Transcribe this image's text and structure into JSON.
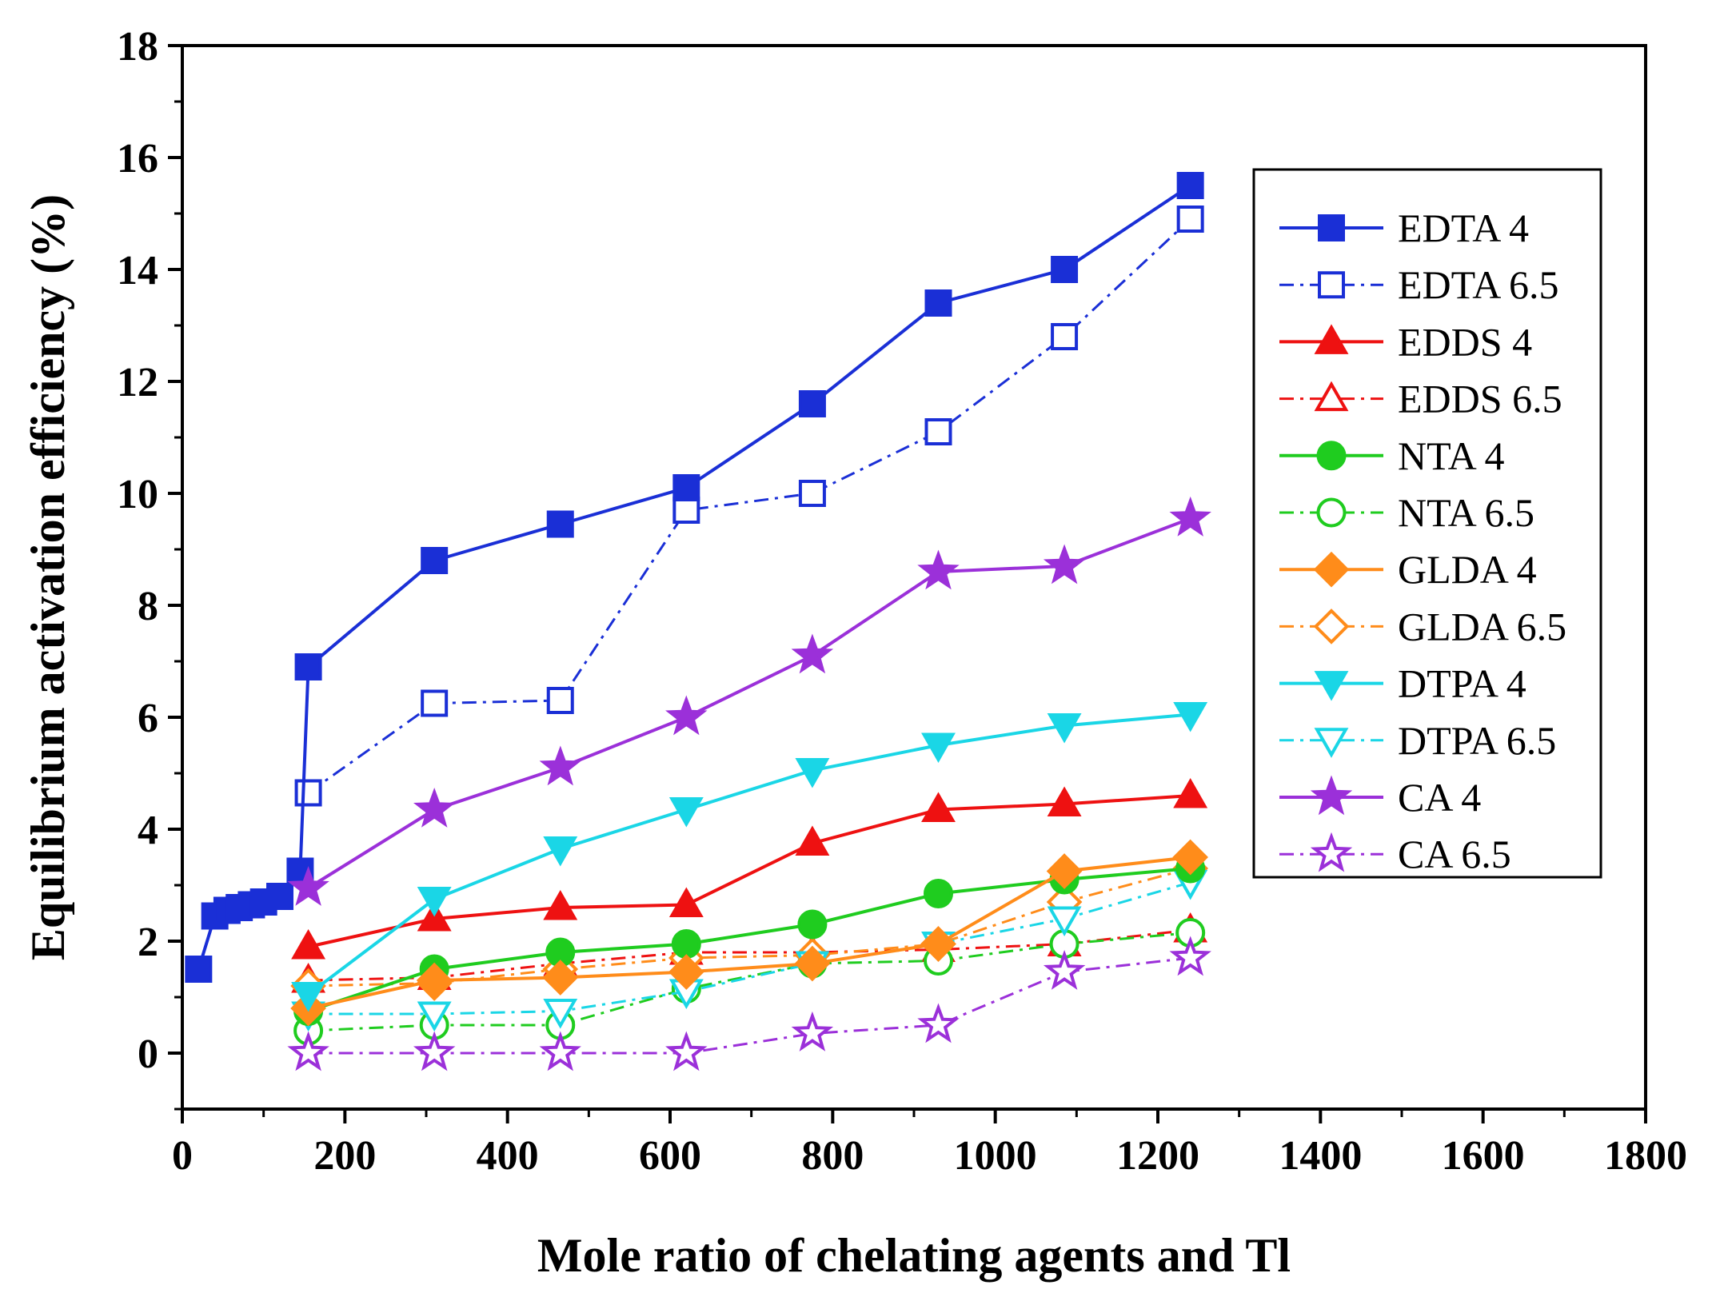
{
  "chart_data": {
    "type": "line",
    "title": "",
    "xlabel": "Mole ratio of chelating agents and Tl",
    "ylabel": "Equilibrium activation efficiency (%)",
    "xlim": [
      0,
      1800
    ],
    "ylim": [
      -1,
      18
    ],
    "xticks": [
      0,
      200,
      400,
      600,
      800,
      1000,
      1200,
      1400,
      1600,
      1800
    ],
    "yticks": [
      0,
      2,
      4,
      6,
      8,
      10,
      12,
      14,
      16,
      18
    ],
    "x_tick_labels": [
      "0",
      "200",
      "400",
      "600",
      "800",
      "1000",
      "1200",
      "1400",
      "1600",
      "1800"
    ],
    "y_tick_labels": [
      "0",
      "2",
      "4",
      "6",
      "8",
      "10",
      "12",
      "14",
      "16",
      "18"
    ],
    "grid": false,
    "legend_position": "right",
    "series": [
      {
        "name": "EDTA 4",
        "color": "#1a2fd6",
        "marker": "square",
        "filled": true,
        "dash": "solid",
        "x": [
          20,
          40,
          55,
          70,
          85,
          100,
          120,
          145,
          155,
          310,
          465,
          620,
          775,
          930,
          1085,
          1240
        ],
        "y": [
          1.5,
          2.45,
          2.55,
          2.6,
          2.65,
          2.7,
          2.8,
          3.25,
          6.9,
          8.8,
          9.45,
          10.1,
          11.6,
          13.4,
          14.0,
          15.5
        ]
      },
      {
        "name": "EDTA 6.5",
        "color": "#1a2fd6",
        "marker": "square",
        "filled": false,
        "dash": "dashdot",
        "x": [
          155,
          310,
          465,
          620,
          775,
          930,
          1085,
          1240
        ],
        "y": [
          4.65,
          6.25,
          6.3,
          9.7,
          10.0,
          11.1,
          12.8,
          14.9
        ]
      },
      {
        "name": "EDDS 4",
        "color": "#ee1111",
        "marker": "triangle-up",
        "filled": true,
        "dash": "solid",
        "x": [
          155,
          310,
          465,
          620,
          775,
          930,
          1085,
          1240
        ],
        "y": [
          1.9,
          2.4,
          2.6,
          2.65,
          3.75,
          4.35,
          4.45,
          4.6
        ]
      },
      {
        "name": "EDDS 6.5",
        "color": "#ee1111",
        "marker": "triangle-up",
        "filled": false,
        "dash": "dashdot",
        "x": [
          155,
          310,
          465,
          620,
          775,
          930,
          1085,
          1240
        ],
        "y": [
          1.3,
          1.35,
          1.6,
          1.8,
          1.8,
          1.85,
          1.95,
          2.2
        ]
      },
      {
        "name": "NTA 4",
        "color": "#1fcc1f",
        "marker": "circle",
        "filled": true,
        "dash": "solid",
        "x": [
          155,
          310,
          465,
          620,
          775,
          930,
          1085,
          1240
        ],
        "y": [
          0.75,
          1.5,
          1.8,
          1.95,
          2.3,
          2.85,
          3.1,
          3.3
        ]
      },
      {
        "name": "NTA 6.5",
        "color": "#1fcc1f",
        "marker": "circle",
        "filled": false,
        "dash": "dashdot",
        "x": [
          155,
          310,
          465,
          620,
          775,
          930,
          1085,
          1240
        ],
        "y": [
          0.4,
          0.5,
          0.5,
          1.15,
          1.6,
          1.65,
          1.95,
          2.15
        ]
      },
      {
        "name": "GLDA 4",
        "color": "#ff8c1a",
        "marker": "diamond",
        "filled": true,
        "dash": "solid",
        "x": [
          155,
          310,
          465,
          620,
          775,
          930,
          1085,
          1240
        ],
        "y": [
          0.8,
          1.3,
          1.35,
          1.45,
          1.6,
          1.95,
          3.25,
          3.5
        ]
      },
      {
        "name": "GLDA 6.5",
        "color": "#ff8c1a",
        "marker": "diamond",
        "filled": false,
        "dash": "dashdot",
        "x": [
          155,
          310,
          465,
          620,
          775,
          930,
          1085,
          1240
        ],
        "y": [
          1.2,
          1.25,
          1.5,
          1.7,
          1.75,
          1.95,
          2.7,
          3.3
        ]
      },
      {
        "name": "DTPA 4",
        "color": "#1ad6e6",
        "marker": "triangle-down",
        "filled": true,
        "dash": "solid",
        "x": [
          155,
          310,
          465,
          620,
          775,
          930,
          1085,
          1240
        ],
        "y": [
          1.05,
          2.75,
          3.65,
          4.35,
          5.05,
          5.5,
          5.85,
          6.05
        ]
      },
      {
        "name": "DTPA 6.5",
        "color": "#1ad6e6",
        "marker": "triangle-down",
        "filled": false,
        "dash": "dashdot",
        "x": [
          155,
          310,
          465,
          620,
          775,
          930,
          1085,
          1240
        ],
        "y": [
          0.7,
          0.7,
          0.75,
          1.1,
          1.6,
          1.95,
          2.4,
          3.05
        ]
      },
      {
        "name": "CA 4",
        "color": "#9b30d9",
        "marker": "star",
        "filled": true,
        "dash": "solid",
        "x": [
          155,
          310,
          465,
          620,
          775,
          930,
          1085,
          1240
        ],
        "y": [
          2.95,
          4.35,
          5.1,
          6.0,
          7.1,
          8.6,
          8.7,
          9.55
        ]
      },
      {
        "name": "CA 6.5",
        "color": "#9b30d9",
        "marker": "star",
        "filled": false,
        "dash": "dashdot",
        "x": [
          155,
          310,
          465,
          620,
          775,
          930,
          1085,
          1240
        ],
        "y": [
          0.0,
          0.0,
          0.0,
          0.0,
          0.35,
          0.5,
          1.45,
          1.7
        ]
      }
    ]
  }
}
